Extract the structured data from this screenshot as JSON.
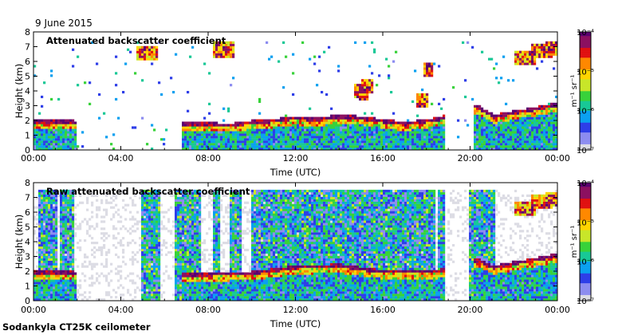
{
  "header": {
    "date": "9 June 2015"
  },
  "footer": {
    "instrument": "Sodankyla CT25K ceilometer"
  },
  "chart_data": [
    {
      "type": "heatmap",
      "title": "Attenuated backscatter coefficient",
      "xlabel": "Time (UTC)",
      "ylabel": "Height (km)",
      "x_ticks": [
        "00:00",
        "04:00",
        "08:00",
        "12:00",
        "16:00",
        "20:00",
        "00:00"
      ],
      "x_range_hours": [
        0,
        24
      ],
      "y_ticks": [
        "0",
        "1",
        "2",
        "3",
        "4",
        "5",
        "6",
        "7",
        "8"
      ],
      "ylim": [
        0,
        8
      ],
      "colorbar": {
        "label": "m⁻¹ sr⁻¹",
        "scale": "log",
        "ticks": [
          "10⁻⁷",
          "10⁻⁶",
          "10⁻⁵",
          "10⁻⁴"
        ],
        "range": [
          1e-07,
          0.0001
        ]
      },
      "features": {
        "boundary_layer_top_km": [
          [
            0.2,
            1.9
          ],
          [
            1.0,
            1.9
          ],
          [
            1.9,
            1.9
          ],
          [
            7.5,
            1.8
          ],
          [
            9,
            1.7
          ],
          [
            10,
            1.9
          ],
          [
            11,
            2.0
          ],
          [
            12,
            2.2
          ],
          [
            13,
            2.1
          ],
          [
            14,
            2.3
          ],
          [
            15,
            2.2
          ],
          [
            16,
            2.0
          ],
          [
            17,
            1.8
          ],
          [
            18.5,
            2.1
          ],
          [
            20.3,
            3.0
          ],
          [
            21.1,
            2.3
          ],
          [
            24,
            3.1
          ]
        ],
        "mid_cloud_km": [
          [
            14.9,
            4.0
          ],
          [
            15.1,
            3.8
          ],
          [
            15.3,
            4.3
          ],
          [
            17.8,
            3.4
          ],
          [
            18.1,
            5.4
          ]
        ],
        "high_cloud_km": [
          [
            5.2,
            6.5
          ],
          [
            8.7,
            6.8
          ],
          [
            22.5,
            6.2
          ],
          [
            23.3,
            6.7
          ],
          [
            24,
            6.9
          ]
        ]
      }
    },
    {
      "type": "heatmap",
      "title": "Raw attenuated backscatter coefficient",
      "xlabel": "Time (UTC)",
      "ylabel": "Height (km)",
      "x_ticks": [
        "00:00",
        "04:00",
        "08:00",
        "12:00",
        "16:00",
        "20:00",
        "00:00"
      ],
      "x_range_hours": [
        0,
        24
      ],
      "y_ticks": [
        "0",
        "1",
        "2",
        "3",
        "4",
        "5",
        "6",
        "7",
        "8"
      ],
      "ylim": [
        0,
        8
      ],
      "colorbar": {
        "label": "m⁻¹ sr⁻¹",
        "scale": "log",
        "ticks": [
          "10⁻⁷",
          "10⁻⁶",
          "10⁻⁵",
          "10⁻⁴"
        ],
        "range": [
          1e-07,
          0.0001
        ]
      },
      "features": {
        "noisy_time_spans_hours": [
          [
            0.2,
            1.1
          ],
          [
            1.2,
            1.9
          ],
          [
            4.9,
            5.8
          ],
          [
            6.5,
            7.7
          ],
          [
            8.2,
            8.6
          ],
          [
            9.0,
            9.5
          ],
          [
            10.0,
            18.4
          ],
          [
            18.5,
            18.9
          ],
          [
            19.9,
            21.2
          ]
        ],
        "boundary_layer_top_km": [
          [
            0.2,
            1.9
          ],
          [
            1.9,
            1.9
          ],
          [
            7.5,
            1.8
          ],
          [
            10,
            1.9
          ],
          [
            12,
            2.3
          ],
          [
            14,
            2.4
          ],
          [
            16,
            2.0
          ],
          [
            18.5,
            2.0
          ],
          [
            20.3,
            2.8
          ],
          [
            21.1,
            2.3
          ],
          [
            24,
            3.1
          ]
        ],
        "high_cloud_km": [
          [
            22.5,
            6.2
          ],
          [
            23.3,
            6.7
          ],
          [
            24,
            6.9
          ]
        ]
      }
    }
  ]
}
